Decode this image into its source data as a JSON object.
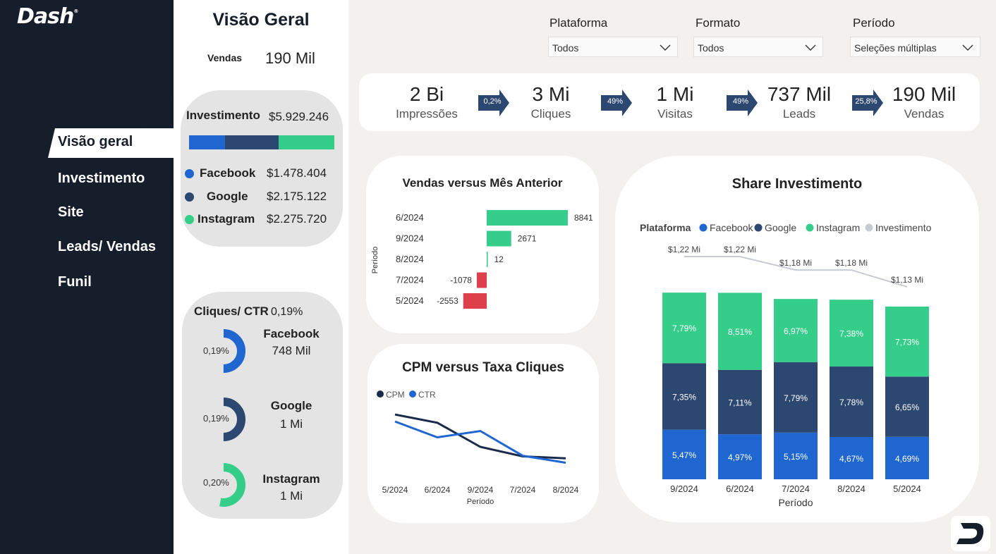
{
  "app": {
    "logo": "Dash",
    "logo_mark": "®"
  },
  "nav": [
    {
      "label": "Visão geral",
      "active": true
    },
    {
      "label": "Investimento",
      "active": false
    },
    {
      "label": "Site",
      "active": false
    },
    {
      "label": "Leads/ Vendas",
      "active": false
    },
    {
      "label": "Funil",
      "active": false
    }
  ],
  "overview": {
    "title": "Visão Geral",
    "vendas_label": "Vendas",
    "vendas_value": "190 Mil",
    "investimento_label": "Investimento",
    "investimento_total": "$5.929.246",
    "platforms": [
      {
        "name": "Facebook",
        "value": "$1.478.404",
        "color": "#1f66d1",
        "share": 0.2493
      },
      {
        "name": "Google",
        "value": "$2.175.122",
        "color": "#2c4770",
        "share": 0.3668
      },
      {
        "name": "Instagram",
        "value": "$2.275.720",
        "color": "#35cd8a",
        "share": 0.3838
      }
    ],
    "ctr_label": "Cliques/ CTR",
    "ctr_total": "0,19%",
    "ctr": [
      {
        "name": "Facebook",
        "value": "748 Mil",
        "pct": "0,19%",
        "color": "#1f66d1",
        "fill": 0.5
      },
      {
        "name": "Google",
        "value": "1 Mi",
        "pct": "0,19%",
        "color": "#2c4770",
        "fill": 0.5
      },
      {
        "name": "Instagram",
        "value": "1 Mi",
        "pct": "0,20%",
        "color": "#35cd8a",
        "fill": 0.53
      }
    ]
  },
  "filters": [
    {
      "label": "Plataforma",
      "value": "Todos"
    },
    {
      "label": "Formato",
      "value": "Todos"
    },
    {
      "label": "Período",
      "value": "Seleções múltiplas"
    }
  ],
  "funnel": {
    "steps": [
      {
        "value": "2 Bi",
        "label": "Impressões"
      },
      {
        "value": "3 Mi",
        "label": "Cliques"
      },
      {
        "value": "1 Mi",
        "label": "Visitas"
      },
      {
        "value": "737 Mil",
        "label": "Leads"
      },
      {
        "value": "190 Mil",
        "label": "Vendas"
      }
    ],
    "rates": [
      "0,2%",
      "49%",
      "49%",
      "25,8%"
    ]
  },
  "chart_data": [
    {
      "type": "bar",
      "title": "Vendas versus Mês Anterior",
      "ylabel": "Período",
      "orientation": "horizontal",
      "categories": [
        "6/2024",
        "9/2024",
        "8/2024",
        "7/2024",
        "5/2024"
      ],
      "values": [
        8841,
        2671,
        12,
        -1078,
        -2553
      ],
      "positive_color": "#35cd8a",
      "negative_color": "#dd3f4b"
    },
    {
      "type": "line",
      "title": "CPM versus Taxa Cliques",
      "xlabel": "Período",
      "x": [
        "5/2024",
        "6/2024",
        "9/2024",
        "7/2024",
        "8/2024"
      ],
      "series": [
        {
          "name": "CPM",
          "color": "#1b2a4a",
          "values": [
            0.91,
            0.78,
            0.4,
            0.25,
            0.22
          ]
        },
        {
          "name": "CTR",
          "color": "#1f66d1",
          "values": [
            0.8,
            0.55,
            0.65,
            0.26,
            0.15
          ]
        }
      ]
    },
    {
      "type": "bar",
      "stacked": true,
      "title": "Share Investimento",
      "xlabel": "Período",
      "legend_title": "Plataforma",
      "categories": [
        "9/2024",
        "6/2024",
        "7/2024",
        "8/2024",
        "5/2024"
      ],
      "series": [
        {
          "name": "Facebook",
          "color": "#1f66d1",
          "values": [
            5.47,
            4.97,
            5.15,
            4.67,
            4.69
          ],
          "labels": [
            "5,47%",
            "4,97%",
            "5,15%",
            "4,67%",
            "4,69%"
          ]
        },
        {
          "name": "Google",
          "color": "#2c4770",
          "values": [
            7.35,
            7.11,
            7.79,
            7.78,
            6.65
          ],
          "labels": [
            "7,35%",
            "7,11%",
            "7,79%",
            "7,78%",
            "6,65%"
          ]
        },
        {
          "name": "Instagram",
          "color": "#35cd8a",
          "values": [
            7.79,
            8.51,
            6.97,
            7.38,
            7.73
          ],
          "labels": [
            "7,79%",
            "8,51%",
            "6,97%",
            "7,38%",
            "7,73%"
          ]
        }
      ],
      "line_series": {
        "name": "Investimento",
        "color": "#c8cbd2",
        "values": [
          1.22,
          1.22,
          1.18,
          1.18,
          1.13
        ],
        "labels": [
          "$1,22 Mi",
          "$1,22 Mi",
          "$1,18 Mi",
          "$1,18 Mi",
          "$1,13 Mi"
        ]
      }
    }
  ]
}
